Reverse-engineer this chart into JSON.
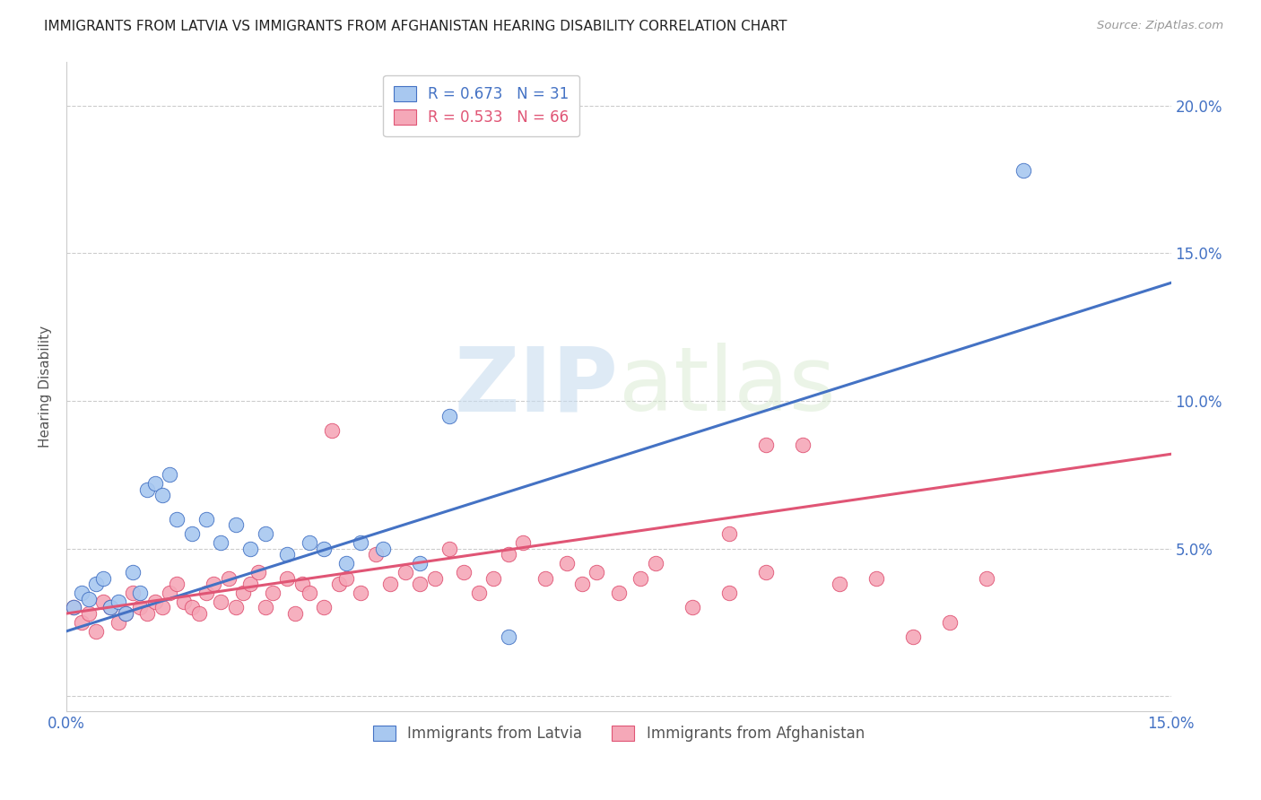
{
  "title": "IMMIGRANTS FROM LATVIA VS IMMIGRANTS FROM AFGHANISTAN HEARING DISABILITY CORRELATION CHART",
  "source": "Source: ZipAtlas.com",
  "ylabel": "Hearing Disability",
  "xlim": [
    0.0,
    0.15
  ],
  "ylim": [
    -0.005,
    0.215
  ],
  "color_latvia": "#A8C8F0",
  "color_afghan": "#F5A8B8",
  "color_line_latvia": "#4472C4",
  "color_line_afghan": "#E05575",
  "watermark_color": "#D8EAF8",
  "latvia_x": [
    0.001,
    0.002,
    0.003,
    0.004,
    0.005,
    0.006,
    0.007,
    0.008,
    0.009,
    0.01,
    0.011,
    0.012,
    0.013,
    0.014,
    0.015,
    0.017,
    0.019,
    0.021,
    0.023,
    0.025,
    0.027,
    0.03,
    0.033,
    0.035,
    0.038,
    0.04,
    0.043,
    0.048,
    0.052,
    0.06,
    0.13
  ],
  "latvia_y": [
    0.03,
    0.035,
    0.033,
    0.038,
    0.04,
    0.03,
    0.032,
    0.028,
    0.042,
    0.035,
    0.07,
    0.072,
    0.068,
    0.075,
    0.06,
    0.055,
    0.06,
    0.052,
    0.058,
    0.05,
    0.055,
    0.048,
    0.052,
    0.05,
    0.045,
    0.052,
    0.05,
    0.045,
    0.095,
    0.02,
    0.178
  ],
  "afghan_x": [
    0.001,
    0.002,
    0.003,
    0.004,
    0.005,
    0.006,
    0.007,
    0.008,
    0.009,
    0.01,
    0.011,
    0.012,
    0.013,
    0.014,
    0.015,
    0.016,
    0.017,
    0.018,
    0.019,
    0.02,
    0.021,
    0.022,
    0.023,
    0.024,
    0.025,
    0.026,
    0.027,
    0.028,
    0.03,
    0.031,
    0.032,
    0.033,
    0.035,
    0.036,
    0.037,
    0.038,
    0.04,
    0.042,
    0.044,
    0.046,
    0.048,
    0.05,
    0.052,
    0.054,
    0.056,
    0.058,
    0.06,
    0.062,
    0.065,
    0.068,
    0.07,
    0.072,
    0.075,
    0.078,
    0.08,
    0.085,
    0.09,
    0.095,
    0.1,
    0.105,
    0.11,
    0.115,
    0.12,
    0.125,
    0.09,
    0.095
  ],
  "afghan_y": [
    0.03,
    0.025,
    0.028,
    0.022,
    0.032,
    0.03,
    0.025,
    0.028,
    0.035,
    0.03,
    0.028,
    0.032,
    0.03,
    0.035,
    0.038,
    0.032,
    0.03,
    0.028,
    0.035,
    0.038,
    0.032,
    0.04,
    0.03,
    0.035,
    0.038,
    0.042,
    0.03,
    0.035,
    0.04,
    0.028,
    0.038,
    0.035,
    0.03,
    0.09,
    0.038,
    0.04,
    0.035,
    0.048,
    0.038,
    0.042,
    0.038,
    0.04,
    0.05,
    0.042,
    0.035,
    0.04,
    0.048,
    0.052,
    0.04,
    0.045,
    0.038,
    0.042,
    0.035,
    0.04,
    0.045,
    0.03,
    0.035,
    0.085,
    0.085,
    0.038,
    0.04,
    0.02,
    0.025,
    0.04,
    0.055,
    0.042
  ],
  "line_latvia_x0": 0.0,
  "line_latvia_y0": 0.022,
  "line_latvia_x1": 0.15,
  "line_latvia_y1": 0.14,
  "line_afghan_x0": 0.0,
  "line_afghan_y0": 0.028,
  "line_afghan_x1": 0.15,
  "line_afghan_y1": 0.082
}
